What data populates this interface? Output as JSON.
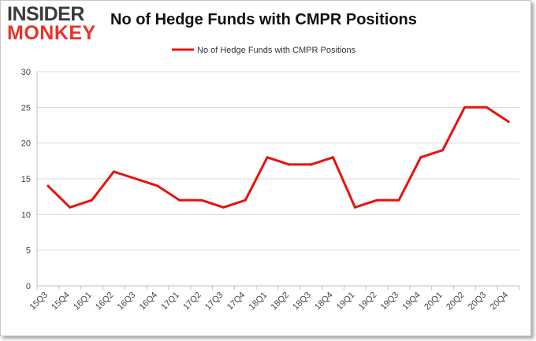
{
  "logo": {
    "line1": "INSIDER",
    "line2": "MONKEY"
  },
  "chart_data": {
    "type": "line",
    "title": "No of Hedge Funds with CMPR Positions",
    "xlabel": "",
    "ylabel": "",
    "categories": [
      "15Q3",
      "15Q4",
      "16Q1",
      "16Q2",
      "16Q3",
      "16Q4",
      "17Q1",
      "17Q2",
      "17Q3",
      "17Q4",
      "18Q1",
      "18Q2",
      "18Q3",
      "18Q4",
      "19Q1",
      "19Q2",
      "19Q3",
      "19Q4",
      "20Q1",
      "20Q2",
      "20Q3",
      "20Q4"
    ],
    "series": [
      {
        "name": "No of Hedge Funds with CMPR Positions",
        "color": "#e8120c",
        "values": [
          14,
          11,
          12,
          16,
          15,
          14,
          12,
          12,
          11,
          12,
          18,
          17,
          17,
          18,
          11,
          12,
          12,
          18,
          19,
          25,
          25,
          23
        ]
      }
    ],
    "ylim": [
      0,
      30
    ],
    "yticks": [
      0,
      5,
      10,
      15,
      20,
      25,
      30
    ],
    "grid": true,
    "legend_position": "top-center"
  }
}
